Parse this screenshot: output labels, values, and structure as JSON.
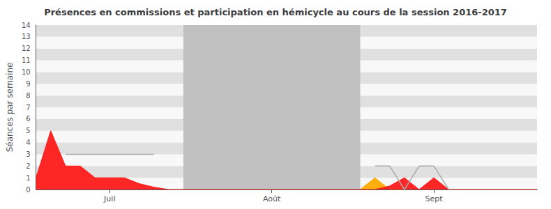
{
  "chart_data": {
    "type": "area",
    "title": "Présences en commissions et participation en hémicycle au cours de la session 2016-2017",
    "ylabel": "Séances par semaine",
    "xlim": [
      0,
      34
    ],
    "xticks": [
      {
        "value": 5,
        "label": "Juil"
      },
      {
        "value": 16,
        "label": "Août"
      },
      {
        "value": 27,
        "label": "Sept"
      }
    ],
    "ylim": [
      0,
      14
    ],
    "yticks": [
      0,
      1,
      2,
      3,
      4,
      5,
      6,
      7,
      8,
      9,
      10,
      11,
      12,
      13,
      14
    ],
    "grid": false,
    "stripe_colors": [
      "#f8f8f8",
      "#e0e0e0"
    ],
    "shaded_region": {
      "x": [
        10,
        22
      ],
      "color": "#c0c0c0"
    },
    "series": [
      {
        "type": "area",
        "color": "#ff1a1a",
        "x": [
          0,
          1,
          2,
          3,
          4,
          5,
          6,
          7,
          8,
          9,
          23,
          24,
          25,
          26,
          27,
          28,
          29,
          30,
          31,
          32,
          33,
          34
        ],
        "values": [
          1,
          5,
          2,
          2,
          1,
          1,
          1,
          0.5,
          0.2,
          0,
          0,
          0.3,
          1,
          0,
          1,
          0,
          0,
          0,
          0,
          0,
          0,
          0
        ]
      },
      {
        "type": "area",
        "color": "#ffaa00",
        "x": [
          22,
          23,
          24,
          25
        ],
        "values": [
          0,
          1,
          0,
          0
        ]
      },
      {
        "type": "line",
        "color": "#aaaaaa",
        "x": [
          2,
          3,
          4,
          5,
          6,
          7,
          8
        ],
        "values": [
          3,
          3,
          3,
          3,
          3,
          3,
          3
        ]
      },
      {
        "type": "line",
        "color": "#aaaaaa",
        "x": [
          23,
          24,
          25,
          26,
          27,
          28
        ],
        "values": [
          2,
          2,
          0,
          2,
          2,
          0
        ]
      }
    ]
  }
}
